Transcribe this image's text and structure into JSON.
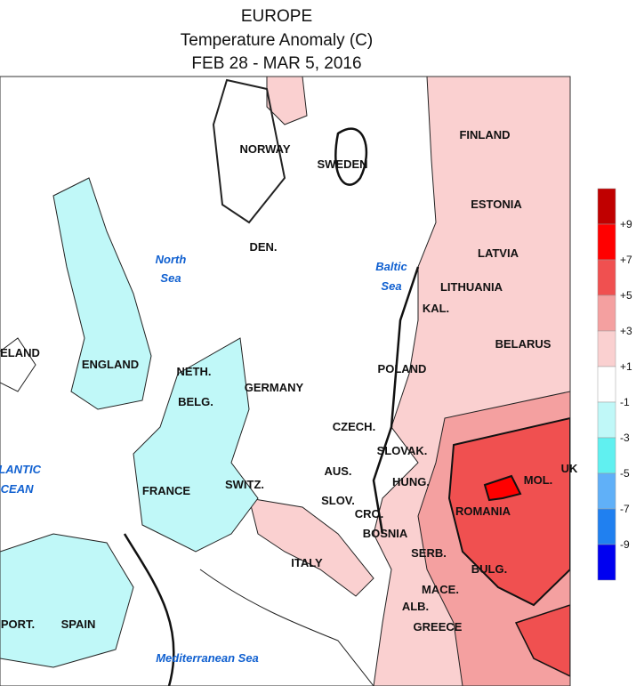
{
  "header": {
    "title": "EUROPE",
    "subtitle": "Temperature Anomaly (C)",
    "dates": "FEB 28 - MAR 5, 2016"
  },
  "countries": [
    "NORWAY",
    "SWEDEN",
    "FINLAND",
    "ESTONIA",
    "LATVIA",
    "LITHUANIA",
    "KAL.",
    "BELARUS",
    "POLAND",
    "DEN.",
    "GERMANY",
    "NETH.",
    "BELG.",
    "IRELAND",
    "ENGLAND",
    "FRANCE",
    "SWITZ.",
    "AUS.",
    "CZECH.",
    "SLOVAK.",
    "HUNG.",
    "SLOV.",
    "CRO.",
    "BOSNIA",
    "ROMANIA",
    "MOL.",
    "UK",
    "SERB.",
    "BULG.",
    "MACE.",
    "ALB.",
    "GREECE",
    "ITALY",
    "SPAIN",
    "PORT."
  ],
  "seas": [
    "North",
    "Sea",
    "Baltic",
    "Sea",
    "ATLANTIC",
    "OCEAN",
    "Mediterranean Sea"
  ],
  "legend": {
    "colors": [
      "#c00000",
      "#ff0000",
      "#f05050",
      "#f4a0a0",
      "#fad0d0",
      "#ffffff",
      "#c0f8f8",
      "#60f0f0",
      "#60b0f8",
      "#2080f0",
      "#0000f0"
    ],
    "labels": [
      "+9",
      "+7",
      "+5",
      "+3",
      "+1",
      "-1",
      "-3",
      "-5",
      "-7",
      "-9"
    ]
  }
}
